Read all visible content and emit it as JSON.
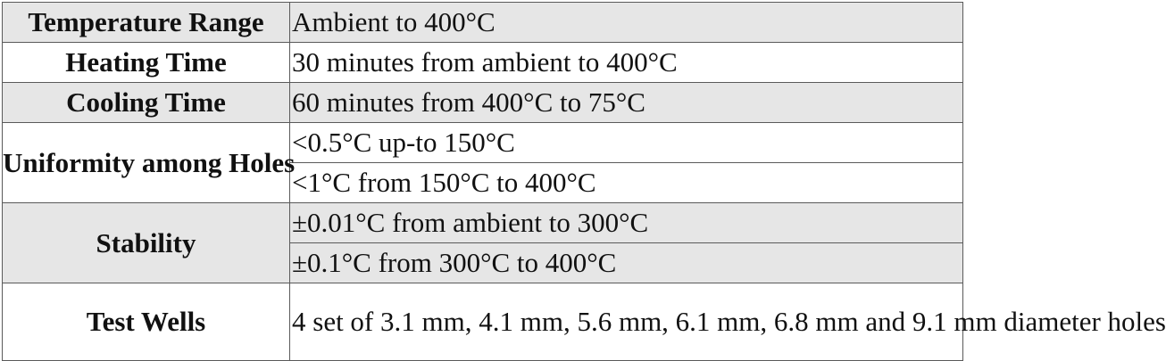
{
  "rows": [
    {
      "label": "Temperature Range",
      "values": [
        "Ambient to 400°C"
      ]
    },
    {
      "label": "Heating Time",
      "values": [
        "30 minutes from ambient to 400°C"
      ]
    },
    {
      "label": "Cooling Time",
      "values": [
        "60 minutes from 400°C to 75°C"
      ]
    },
    {
      "label": "Uniformity among Holes",
      "values": [
        "<0.5°C up-to 150°C",
        "<1°C from 150°C to 400°C"
      ]
    },
    {
      "label": "Stability",
      "values": [
        "±0.01°C from ambient to 300°C",
        "±0.1°C from 300°C to 400°C"
      ]
    },
    {
      "label": "Test Wells",
      "values": [
        "4 set of 3.1 mm, 4.1 mm, 5.6 mm, 6.1 mm, 6.8 mm and 9.1 mm diameter holes"
      ]
    }
  ],
  "colors": {
    "shaded_row": "#e6e6e6",
    "plain_row": "#ffffff",
    "border": "#5a5a5a",
    "text": "#111111"
  }
}
